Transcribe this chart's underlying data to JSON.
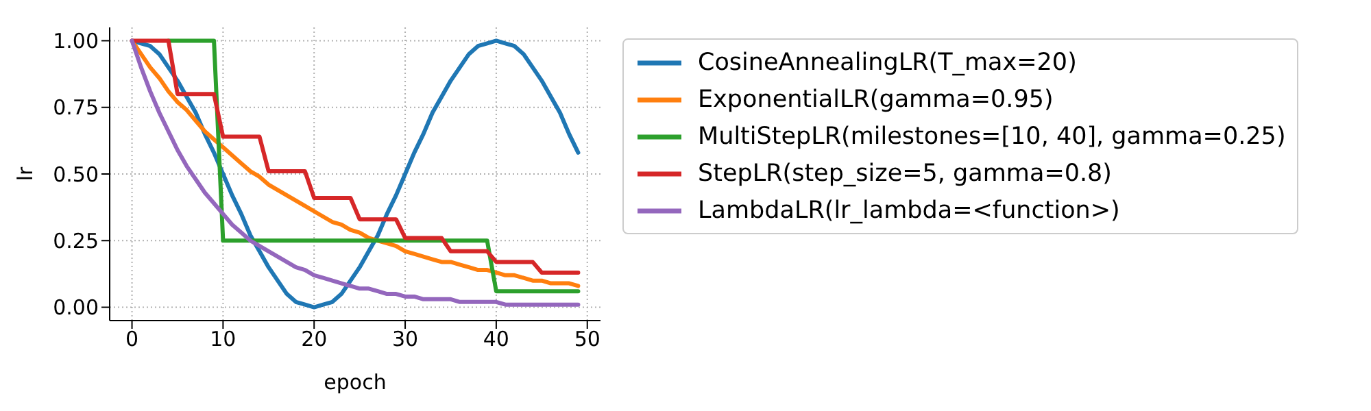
{
  "chart_data": {
    "type": "line",
    "xlabel": "epoch",
    "ylabel": "lr",
    "x": [
      0,
      1,
      2,
      3,
      4,
      5,
      6,
      7,
      8,
      9,
      10,
      11,
      12,
      13,
      14,
      15,
      16,
      17,
      18,
      19,
      20,
      21,
      22,
      23,
      24,
      25,
      26,
      27,
      28,
      29,
      30,
      31,
      32,
      33,
      34,
      35,
      36,
      37,
      38,
      39,
      40,
      41,
      42,
      43,
      44,
      45,
      46,
      47,
      48,
      49
    ],
    "series": [
      {
        "name": "CosineAnnealingLR(T_max=20)",
        "color": "#1f77b4",
        "values": [
          1.0,
          0.99,
          0.98,
          0.95,
          0.9,
          0.85,
          0.79,
          0.73,
          0.65,
          0.58,
          0.5,
          0.42,
          0.35,
          0.27,
          0.21,
          0.15,
          0.1,
          0.05,
          0.02,
          0.01,
          0.0,
          0.01,
          0.02,
          0.05,
          0.1,
          0.15,
          0.21,
          0.27,
          0.35,
          0.42,
          0.5,
          0.58,
          0.65,
          0.73,
          0.79,
          0.85,
          0.9,
          0.95,
          0.98,
          0.99,
          1.0,
          0.99,
          0.98,
          0.95,
          0.9,
          0.85,
          0.79,
          0.73,
          0.65,
          0.58
        ]
      },
      {
        "name": "ExponentialLR(gamma=0.95)",
        "color": "#ff7f0e",
        "values": [
          1.0,
          0.95,
          0.9,
          0.86,
          0.81,
          0.77,
          0.74,
          0.7,
          0.66,
          0.63,
          0.6,
          0.57,
          0.54,
          0.51,
          0.49,
          0.46,
          0.44,
          0.42,
          0.4,
          0.38,
          0.36,
          0.34,
          0.32,
          0.31,
          0.29,
          0.28,
          0.26,
          0.25,
          0.24,
          0.23,
          0.21,
          0.2,
          0.19,
          0.18,
          0.17,
          0.17,
          0.16,
          0.15,
          0.14,
          0.14,
          0.13,
          0.12,
          0.12,
          0.11,
          0.1,
          0.1,
          0.09,
          0.09,
          0.09,
          0.08
        ]
      },
      {
        "name": "MultiStepLR(milestones=[10, 40], gamma=0.25)",
        "color": "#2ca02c",
        "values": [
          null,
          null,
          null,
          null,
          1.0,
          1.0,
          1.0,
          1.0,
          1.0,
          1.0,
          0.25,
          0.25,
          0.25,
          0.25,
          0.25,
          0.25,
          0.25,
          0.25,
          0.25,
          0.25,
          0.25,
          0.25,
          0.25,
          0.25,
          0.25,
          0.25,
          0.25,
          0.25,
          0.25,
          0.25,
          0.25,
          0.25,
          0.25,
          0.25,
          0.25,
          0.25,
          0.25,
          0.25,
          0.25,
          0.25,
          0.06,
          0.06,
          0.06,
          0.06,
          0.06,
          0.06,
          0.06,
          0.06,
          0.06,
          0.06
        ]
      },
      {
        "name": "StepLR(step_size=5, gamma=0.8)",
        "color": "#d62728",
        "values": [
          1.0,
          1.0,
          1.0,
          1.0,
          1.0,
          0.8,
          0.8,
          0.8,
          0.8,
          0.8,
          0.64,
          0.64,
          0.64,
          0.64,
          0.64,
          0.51,
          0.51,
          0.51,
          0.51,
          0.51,
          0.41,
          0.41,
          0.41,
          0.41,
          0.41,
          0.33,
          0.33,
          0.33,
          0.33,
          0.33,
          0.26,
          0.26,
          0.26,
          0.26,
          0.26,
          0.21,
          0.21,
          0.21,
          0.21,
          0.21,
          0.17,
          0.17,
          0.17,
          0.17,
          0.17,
          0.13,
          0.13,
          0.13,
          0.13,
          0.13
        ]
      },
      {
        "name": "LambdaLR(lr_lambda=<function>)",
        "color": "#9467bd",
        "values": [
          1.0,
          0.9,
          0.81,
          0.73,
          0.66,
          0.59,
          0.53,
          0.48,
          0.43,
          0.39,
          0.35,
          0.31,
          0.28,
          0.25,
          0.23,
          0.21,
          0.19,
          0.17,
          0.15,
          0.14,
          0.12,
          0.11,
          0.1,
          0.09,
          0.08,
          0.07,
          0.07,
          0.06,
          0.05,
          0.05,
          0.04,
          0.04,
          0.03,
          0.03,
          0.03,
          0.03,
          0.02,
          0.02,
          0.02,
          0.02,
          0.02,
          0.01,
          0.01,
          0.01,
          0.01,
          0.01,
          0.01,
          0.01,
          0.01,
          0.01
        ]
      }
    ],
    "xlim": [
      -2.45,
      51.45
    ],
    "xticks": [
      0,
      10,
      20,
      30,
      40,
      50
    ],
    "ylim": [
      -0.05,
      1.05
    ],
    "yticks": [
      {
        "value": 0,
        "label": "0.00"
      },
      {
        "value": 0.25,
        "label": "0.25"
      },
      {
        "value": 0.5,
        "label": "0.50"
      },
      {
        "value": 0.75,
        "label": "0.75"
      },
      {
        "value": 1,
        "label": "1.00"
      }
    ],
    "grid": true,
    "legend": "right",
    "marker": "none",
    "line_style": "solid"
  }
}
